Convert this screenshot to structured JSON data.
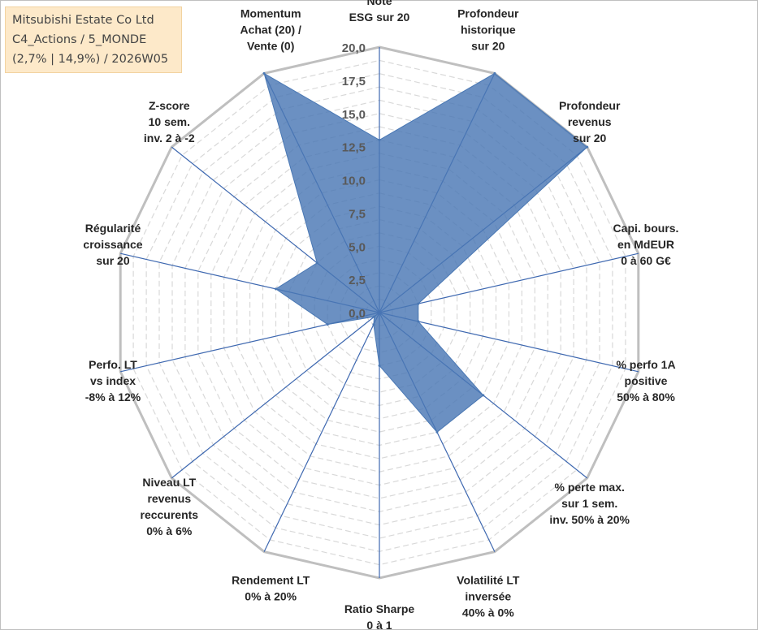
{
  "info": {
    "line1": "Mitsubishi Estate Co Ltd",
    "line2": "C4_Actions / 5_MONDE",
    "line3": "(2,7% | 14,9%) / 2026W05"
  },
  "chart_data": {
    "type": "radar",
    "title": "Mitsubishi Estate Co Ltd",
    "rmin": 0,
    "rmax": 20,
    "ticks": [
      "0,0",
      "2,5",
      "5,0",
      "7,5",
      "10,0",
      "12,5",
      "15,0",
      "17,5",
      "20,0"
    ],
    "axes": [
      [
        "Note",
        "ESG sur 20"
      ],
      [
        "Profondeur",
        "historique",
        "sur 20"
      ],
      [
        "Profondeur",
        "revenus",
        "sur 20"
      ],
      [
        "Capi. bours.",
        "en MdEUR",
        "0 à 60 G€"
      ],
      [
        "% perfo 1A",
        "positive",
        "50% à 80%"
      ],
      [
        "% perte max.",
        "sur 1 sem.",
        "inv. 50% à 20%"
      ],
      [
        "Volatilité LT",
        "inversée",
        "40% à 0%"
      ],
      [
        "Ratio Sharpe",
        "0 à 1"
      ],
      [
        "Rendement LT",
        "0% à 20%"
      ],
      [
        "Niveau LT",
        "revenus",
        "reccurents",
        "0% à 6%"
      ],
      [
        "Perfo. LT",
        "vs index",
        "-8% à 12%"
      ],
      [
        "Régularité",
        "croissance",
        "sur 20"
      ],
      [
        "Z-score",
        "10 sem.",
        "inv. 2 à -2"
      ],
      [
        "Momentum",
        "Achat (20) /",
        "Vente (0)"
      ]
    ],
    "series": [
      {
        "name": "Mitsubishi Estate Co Ltd",
        "color": "#4a78b4",
        "values": [
          13,
          20,
          20,
          3,
          3,
          10,
          10,
          4,
          1,
          0.5,
          4,
          8,
          6,
          20
        ]
      }
    ]
  }
}
